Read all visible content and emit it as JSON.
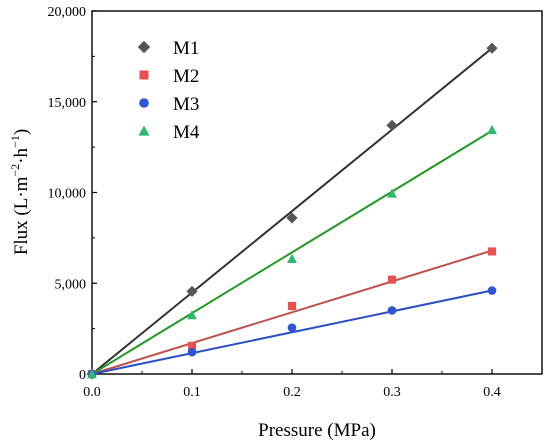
{
  "chart_data": {
    "type": "scatter",
    "xlabel": "Pressure (MPa)",
    "ylabel_parts": {
      "prefix": "Flux (L·m",
      "sup1": "−2",
      "mid": "·h",
      "sup2": "−1",
      "suffix": ")"
    },
    "xlim": [
      0.0,
      0.45
    ],
    "ylim": [
      0,
      20000
    ],
    "x_ticks": [
      0.0,
      0.1,
      0.2,
      0.3,
      0.4
    ],
    "x_tick_labels": [
      "0.0",
      "0.1",
      "0.2",
      "0.3",
      "0.4"
    ],
    "y_ticks": [
      0,
      5000,
      10000,
      15000,
      20000
    ],
    "y_tick_labels": [
      "0",
      "5,000",
      "10,000",
      "15,000",
      "20,000"
    ],
    "grid": false,
    "legend_position": "top-left",
    "series": [
      {
        "name": "M1",
        "marker": "diamond",
        "color": "#555555",
        "line_color": "#333333",
        "x": [
          0.0,
          0.1,
          0.2,
          0.3,
          0.4
        ],
        "y": [
          0,
          4550,
          8600,
          13700,
          17950
        ],
        "fit_end": 17950
      },
      {
        "name": "M2",
        "marker": "square",
        "color": "#ec4f4f",
        "line_color": "#c0504d",
        "x": [
          0.0,
          0.1,
          0.2,
          0.3,
          0.4
        ],
        "y": [
          0,
          1550,
          3750,
          5200,
          6750
        ],
        "fit_end": 6800
      },
      {
        "name": "M3",
        "marker": "circle",
        "color": "#2f55d4",
        "line_color": "#2b4fc4",
        "x": [
          0.0,
          0.1,
          0.2,
          0.3,
          0.4
        ],
        "y": [
          0,
          1200,
          2550,
          3500,
          4600
        ],
        "fit_end": 4600
      },
      {
        "name": "M4",
        "marker": "triangle",
        "color": "#2eb872",
        "line_color": "#1f9a1f",
        "x": [
          0.0,
          0.1,
          0.2,
          0.3,
          0.4
        ],
        "y": [
          0,
          3250,
          6350,
          9950,
          13450
        ],
        "fit_end": 13400
      }
    ]
  }
}
